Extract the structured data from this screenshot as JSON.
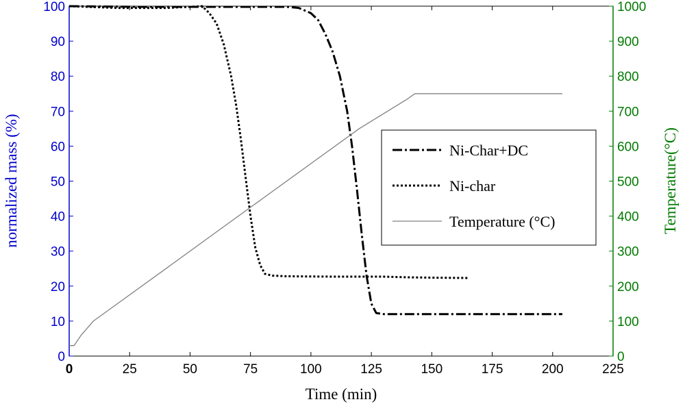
{
  "chart_data": {
    "type": "line",
    "xlabel": "Time (min)",
    "ylabel_left": "normalized mass (%)",
    "ylabel_right": "Temperature(°C)",
    "xlim": [
      0,
      225
    ],
    "ylim_left": [
      0,
      100
    ],
    "ylim_right": [
      0,
      1000
    ],
    "x_ticks": [
      "0",
      "25",
      "50",
      "75",
      "100",
      "125",
      "150",
      "175",
      "200",
      "225"
    ],
    "y_left_ticks": [
      "0",
      "10",
      "20",
      "30",
      "40",
      "50",
      "60",
      "70",
      "80",
      "90",
      "100"
    ],
    "y_right_ticks": [
      "0",
      "100",
      "200",
      "300",
      "400",
      "500",
      "600",
      "700",
      "800",
      "900",
      "1000"
    ],
    "colors": {
      "left_axis": "#0000cc",
      "right_axis": "#007a00",
      "temperature": "#808080",
      "mass": "#000000"
    },
    "legend_position": "center-right",
    "grid": false,
    "series": [
      {
        "name": "Ni-Char+DC",
        "axis": "left",
        "style": "dashdot",
        "x": [
          0,
          30,
          60,
          80,
          90,
          95,
          100,
          103,
          106,
          109,
          112,
          115,
          117,
          119,
          121,
          123,
          125,
          127,
          130,
          150,
          175,
          204
        ],
        "y": [
          100,
          99.8,
          99.8,
          99.8,
          99.8,
          99.5,
          98,
          96,
          92,
          87,
          80,
          70,
          60,
          48,
          35,
          23,
          15,
          12.3,
          12,
          12,
          12,
          12
        ]
      },
      {
        "name": "Ni-char",
        "axis": "left",
        "style": "dotted",
        "x": [
          0,
          20,
          40,
          50,
          55,
          58,
          61,
          64,
          67,
          69,
          71,
          73,
          75,
          77,
          79,
          81,
          84,
          90,
          110,
          130,
          140,
          150,
          165
        ],
        "y": [
          100,
          99.5,
          99.5,
          99.8,
          100,
          98,
          95,
          89,
          80,
          72,
          62,
          51,
          40,
          31,
          26,
          23.5,
          23,
          22.8,
          22.7,
          22.7,
          22.5,
          22.4,
          22.3
        ]
      },
      {
        "name": "Temperature (°C)",
        "axis": "right",
        "style": "solid",
        "x": [
          0,
          2,
          5,
          10,
          20,
          40,
          60,
          80,
          100,
          120,
          140,
          143,
          145,
          175,
          204
        ],
        "y": [
          30,
          30,
          60,
          100,
          150,
          250,
          350,
          450,
          550,
          650,
          735,
          750,
          750,
          750,
          750
        ]
      }
    ]
  }
}
